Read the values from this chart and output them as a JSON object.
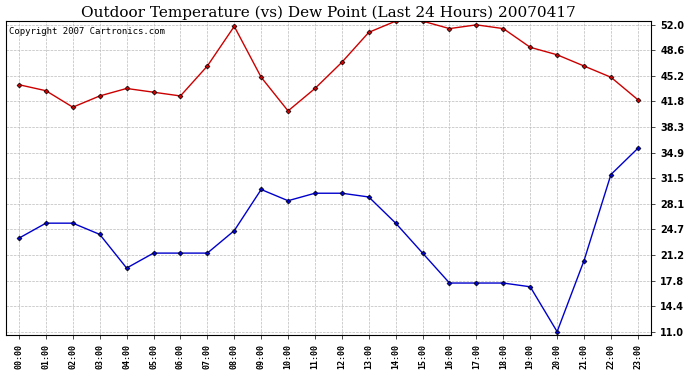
{
  "title": "Outdoor Temperature (vs) Dew Point (Last 24 Hours) 20070417",
  "copyright": "Copyright 2007 Cartronics.com",
  "x_labels": [
    "00:00",
    "01:00",
    "02:00",
    "03:00",
    "04:00",
    "05:00",
    "06:00",
    "07:00",
    "08:00",
    "09:00",
    "10:00",
    "11:00",
    "12:00",
    "13:00",
    "14:00",
    "15:00",
    "16:00",
    "17:00",
    "18:00",
    "19:00",
    "20:00",
    "21:00",
    "22:00",
    "23:00"
  ],
  "temp_red": [
    44.0,
    43.2,
    41.0,
    42.5,
    43.5,
    43.0,
    42.5,
    46.5,
    51.8,
    45.0,
    40.5,
    43.5,
    47.0,
    51.0,
    52.5,
    52.5,
    51.5,
    52.0,
    51.5,
    49.0,
    48.0,
    46.5,
    45.0,
    42.0
  ],
  "dew_blue": [
    23.5,
    25.5,
    25.5,
    24.0,
    19.5,
    21.5,
    21.5,
    21.5,
    24.5,
    30.0,
    28.5,
    29.5,
    29.5,
    29.0,
    25.5,
    21.5,
    17.5,
    17.5,
    17.5,
    17.0,
    11.0,
    20.5,
    32.0,
    35.5
  ],
  "y_ticks": [
    11.0,
    14.4,
    17.8,
    21.2,
    24.7,
    28.1,
    31.5,
    34.9,
    38.3,
    41.8,
    45.2,
    48.6,
    52.0
  ],
  "y_min": 11.0,
  "y_max": 52.0,
  "bg_color": "#ffffff",
  "grid_color": "#bbbbbb",
  "red_color": "#cc0000",
  "blue_color": "#0000cc",
  "title_fontsize": 11,
  "copyright_fontsize": 6.5
}
